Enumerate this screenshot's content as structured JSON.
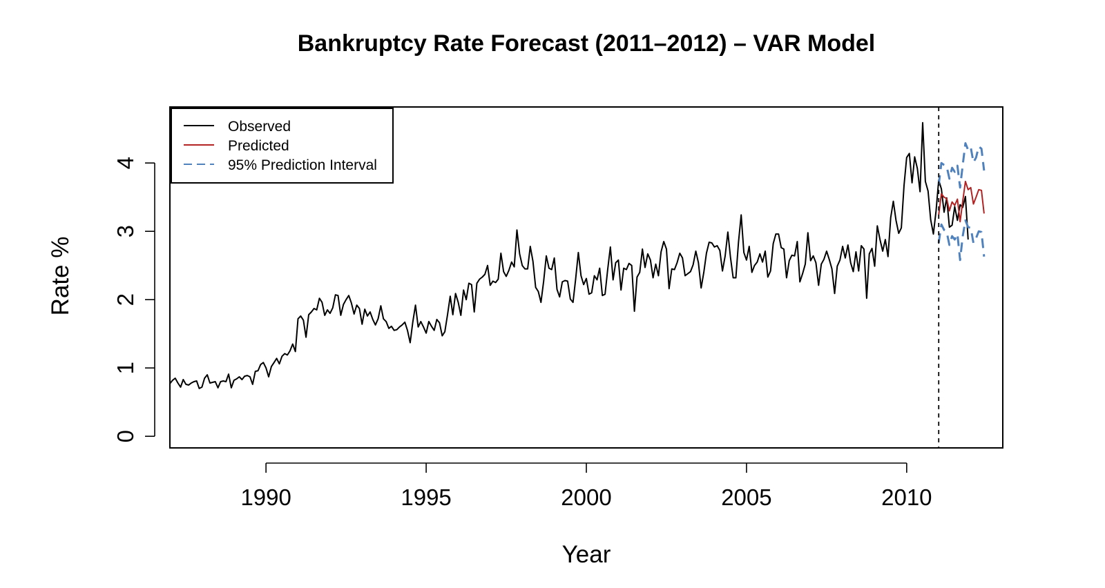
{
  "chart_data": {
    "type": "line",
    "title": "Bankruptcy Rate Forecast (2011–2012) – VAR Model",
    "xlabel": "Year",
    "ylabel": "Rate %",
    "xlim": [
      1987,
      2013
    ],
    "ylim": [
      -0.17,
      4.82
    ],
    "x_ticks": [
      1990,
      1995,
      2000,
      2005,
      2010
    ],
    "y_ticks": [
      0,
      1,
      2,
      3,
      4
    ],
    "grid": false,
    "legend_position": "top-left",
    "cutoff_x": 2011,
    "legend": [
      {
        "label": "Observed",
        "color": "#000000",
        "style": "solid"
      },
      {
        "label": "Predicted",
        "color": "#b22222",
        "style": "solid"
      },
      {
        "label": "95% Prediction Interval",
        "color": "#4f81bd",
        "style": "dashed"
      }
    ],
    "series": [
      {
        "name": "Observed",
        "color": "#000000",
        "style": "solid",
        "x_start": 1987,
        "x_step_months": 1,
        "values": [
          0.77,
          0.82,
          0.85,
          0.78,
          0.72,
          0.83,
          0.76,
          0.75,
          0.78,
          0.8,
          0.81,
          0.7,
          0.72,
          0.85,
          0.9,
          0.78,
          0.79,
          0.8,
          0.71,
          0.8,
          0.81,
          0.8,
          0.91,
          0.71,
          0.82,
          0.84,
          0.87,
          0.83,
          0.88,
          0.89,
          0.87,
          0.76,
          0.95,
          0.96,
          1.05,
          1.08,
          1.0,
          0.87,
          1.02,
          1.08,
          1.14,
          1.06,
          1.17,
          1.21,
          1.19,
          1.25,
          1.35,
          1.24,
          1.72,
          1.76,
          1.7,
          1.45,
          1.78,
          1.82,
          1.87,
          1.85,
          2.02,
          1.96,
          1.77,
          1.85,
          1.8,
          1.88,
          2.07,
          2.06,
          1.77,
          1.93,
          2.0,
          2.06,
          1.95,
          1.79,
          1.92,
          1.87,
          1.64,
          1.86,
          1.76,
          1.82,
          1.71,
          1.63,
          1.72,
          1.91,
          1.72,
          1.68,
          1.58,
          1.61,
          1.55,
          1.56,
          1.6,
          1.63,
          1.67,
          1.55,
          1.37,
          1.67,
          1.92,
          1.6,
          1.68,
          1.6,
          1.51,
          1.68,
          1.61,
          1.55,
          1.71,
          1.66,
          1.47,
          1.53,
          1.78,
          2.05,
          1.78,
          2.09,
          1.96,
          1.77,
          2.14,
          2.0,
          2.24,
          2.22,
          1.82,
          2.24,
          2.3,
          2.33,
          2.37,
          2.5,
          2.21,
          2.27,
          2.25,
          2.3,
          2.68,
          2.41,
          2.34,
          2.43,
          2.55,
          2.48,
          3.02,
          2.67,
          2.5,
          2.45,
          2.45,
          2.78,
          2.56,
          2.18,
          2.12,
          1.96,
          2.27,
          2.64,
          2.46,
          2.44,
          2.61,
          2.15,
          2.04,
          2.26,
          2.28,
          2.27,
          2.01,
          1.96,
          2.3,
          2.69,
          2.35,
          2.22,
          2.31,
          2.08,
          2.1,
          2.35,
          2.29,
          2.46,
          2.06,
          2.08,
          2.44,
          2.77,
          2.29,
          2.54,
          2.58,
          2.14,
          2.46,
          2.44,
          2.53,
          2.5,
          1.83,
          2.33,
          2.4,
          2.74,
          2.47,
          2.67,
          2.58,
          2.32,
          2.52,
          2.35,
          2.7,
          2.85,
          2.74,
          2.16,
          2.45,
          2.44,
          2.54,
          2.68,
          2.61,
          2.35,
          2.38,
          2.41,
          2.51,
          2.71,
          2.54,
          2.17,
          2.4,
          2.68,
          2.84,
          2.83,
          2.77,
          2.79,
          2.72,
          2.42,
          2.64,
          2.99,
          2.62,
          2.32,
          2.32,
          2.84,
          3.24,
          2.69,
          2.58,
          2.78,
          2.4,
          2.5,
          2.55,
          2.67,
          2.55,
          2.71,
          2.33,
          2.42,
          2.82,
          2.96,
          2.96,
          2.76,
          2.74,
          2.32,
          2.57,
          2.65,
          2.64,
          2.85,
          2.26,
          2.38,
          2.52,
          2.98,
          2.57,
          2.64,
          2.54,
          2.21,
          2.52,
          2.59,
          2.71,
          2.59,
          2.45,
          2.09,
          2.49,
          2.58,
          2.78,
          2.61,
          2.8,
          2.54,
          2.41,
          2.7,
          2.42,
          2.79,
          2.74,
          2.02,
          2.67,
          2.75,
          2.49,
          3.08,
          2.88,
          2.71,
          2.88,
          2.63,
          3.2,
          3.44,
          3.16,
          2.97,
          3.05,
          3.67,
          4.08,
          4.14,
          3.71,
          4.09,
          3.92,
          3.58,
          4.59,
          3.73,
          3.59,
          3.17,
          2.96,
          3.3,
          3.75,
          3.62,
          3.28,
          3.49,
          3.06,
          3.09,
          3.36,
          3.16,
          3.39,
          3.35,
          3.51,
          2.88
        ]
      },
      {
        "name": "Predicted",
        "color": "#b22222",
        "style": "solid",
        "x_start": 2011,
        "x_step_months": 1,
        "values": [
          3.24,
          3.55,
          3.5,
          3.48,
          3.3,
          3.43,
          3.38,
          3.47,
          3.14,
          3.44,
          3.73,
          3.61,
          3.64,
          3.4,
          3.5,
          3.61,
          3.6,
          3.26
        ]
      },
      {
        "name": "95% Prediction Interval (upper)",
        "color": "#4f81bd",
        "style": "dashed",
        "x_start": 2011,
        "x_step_months": 1,
        "values": [
          3.68,
          4.0,
          3.97,
          3.95,
          3.77,
          3.93,
          3.87,
          3.96,
          3.64,
          3.97,
          4.29,
          4.19,
          4.23,
          4.01,
          4.08,
          4.24,
          4.21,
          3.89
        ]
      },
      {
        "name": "95% Prediction Interval (lower)",
        "color": "#4f81bd",
        "style": "dashed",
        "x_start": 2011,
        "x_step_months": 1,
        "values": [
          2.83,
          3.1,
          3.02,
          2.99,
          2.8,
          2.93,
          2.88,
          2.96,
          2.58,
          2.93,
          3.16,
          3.06,
          3.05,
          2.83,
          2.9,
          3.0,
          2.99,
          2.63
        ]
      }
    ]
  }
}
